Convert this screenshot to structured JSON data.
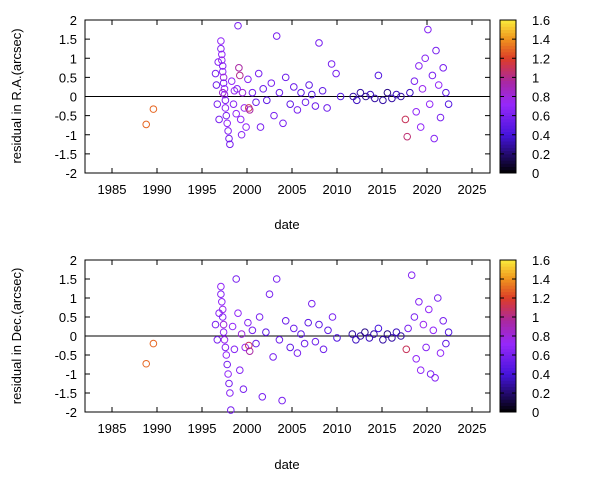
{
  "chart_data": [
    {
      "type": "scatter",
      "xlabel": "date",
      "ylabel": "residual in R.A.(arcsec)",
      "xlim": [
        1982,
        2027
      ],
      "ylim": [
        -2,
        2
      ],
      "x_ticks": [
        "1985",
        "1990",
        "1995",
        "2000",
        "2005",
        "2010",
        "2015",
        "2020",
        "2025"
      ],
      "y_ticks": [
        "-2",
        "-1.5",
        "-1",
        "-0.5",
        "0",
        "0.5",
        "1",
        "1.5",
        "2"
      ],
      "colorbar_ticks": [
        "0",
        "0.2",
        "0.4",
        "0.6",
        "0.8",
        "1",
        "1.2",
        "1.4",
        "1.6"
      ],
      "colorbar_range": [
        0,
        1.6
      ],
      "zero_line": true,
      "marker": "open-circle",
      "points": [
        {
          "x": 1988.8,
          "y": -0.73,
          "c": 1.3
        },
        {
          "x": 1989.6,
          "y": -0.33,
          "c": 1.3
        },
        {
          "x": 1996.5,
          "y": 0.6,
          "c": 0.6
        },
        {
          "x": 1996.6,
          "y": 0.3,
          "c": 0.55
        },
        {
          "x": 1996.7,
          "y": -0.2,
          "c": 0.6
        },
        {
          "x": 1996.8,
          "y": 0.9,
          "c": 0.65
        },
        {
          "x": 1996.9,
          "y": -0.6,
          "c": 0.6
        },
        {
          "x": 1997.1,
          "y": 1.45,
          "c": 0.7
        },
        {
          "x": 1997.1,
          "y": 1.25,
          "c": 0.65
        },
        {
          "x": 1997.2,
          "y": 1.1,
          "c": 0.7
        },
        {
          "x": 1997.2,
          "y": 0.95,
          "c": 0.75
        },
        {
          "x": 1997.3,
          "y": 0.8,
          "c": 0.65
        },
        {
          "x": 1997.3,
          "y": 0.65,
          "c": 0.7
        },
        {
          "x": 1997.4,
          "y": 0.5,
          "c": 0.8
        },
        {
          "x": 1997.4,
          "y": 0.35,
          "c": 0.6
        },
        {
          "x": 1997.5,
          "y": 0.2,
          "c": 0.7
        },
        {
          "x": 1997.5,
          "y": 0.05,
          "c": 0.75
        },
        {
          "x": 1997.6,
          "y": -0.1,
          "c": 0.65
        },
        {
          "x": 1997.6,
          "y": -0.3,
          "c": 0.7
        },
        {
          "x": 1997.7,
          "y": -0.5,
          "c": 0.6
        },
        {
          "x": 1997.8,
          "y": -0.7,
          "c": 0.7
        },
        {
          "x": 1997.9,
          "y": -0.9,
          "c": 0.65
        },
        {
          "x": 1998.0,
          "y": -1.1,
          "c": 0.6
        },
        {
          "x": 1998.1,
          "y": -1.25,
          "c": 0.6
        },
        {
          "x": 1997.3,
          "y": 0.1,
          "c": 0.85
        },
        {
          "x": 1998.3,
          "y": 0.4,
          "c": 0.7
        },
        {
          "x": 1998.5,
          "y": -0.2,
          "c": 0.65
        },
        {
          "x": 1998.6,
          "y": 0.15,
          "c": 0.75
        },
        {
          "x": 1998.8,
          "y": -0.45,
          "c": 0.7
        },
        {
          "x": 1998.9,
          "y": 0.2,
          "c": 0.65
        },
        {
          "x": 1999.0,
          "y": 1.85,
          "c": 0.6
        },
        {
          "x": 1999.1,
          "y": 0.75,
          "c": 0.95
        },
        {
          "x": 1999.2,
          "y": 0.55,
          "c": 1.0
        },
        {
          "x": 1999.3,
          "y": -0.6,
          "c": 0.7
        },
        {
          "x": 1999.4,
          "y": -1.0,
          "c": 0.65
        },
        {
          "x": 1999.5,
          "y": 0.1,
          "c": 0.8
        },
        {
          "x": 1999.7,
          "y": -0.3,
          "c": 0.75
        },
        {
          "x": 1999.9,
          "y": -0.8,
          "c": 0.7
        },
        {
          "x": 2000.1,
          "y": 0.45,
          "c": 0.65
        },
        {
          "x": 2000.2,
          "y": -0.3,
          "c": 1.1
        },
        {
          "x": 2000.3,
          "y": -0.35,
          "c": 0.95
        },
        {
          "x": 2000.6,
          "y": 0.1,
          "c": 0.6
        },
        {
          "x": 2001.0,
          "y": -0.15,
          "c": 0.55
        },
        {
          "x": 2001.3,
          "y": 0.6,
          "c": 0.6
        },
        {
          "x": 2001.5,
          "y": -0.8,
          "c": 0.6
        },
        {
          "x": 2001.8,
          "y": 0.2,
          "c": 0.55
        },
        {
          "x": 2002.2,
          "y": -0.1,
          "c": 0.5
        },
        {
          "x": 2002.7,
          "y": 0.35,
          "c": 0.6
        },
        {
          "x": 2003.0,
          "y": -0.5,
          "c": 0.6
        },
        {
          "x": 2003.3,
          "y": 1.58,
          "c": 0.6
        },
        {
          "x": 2003.6,
          "y": 0.1,
          "c": 0.55
        },
        {
          "x": 2004.0,
          "y": -0.7,
          "c": 0.6
        },
        {
          "x": 2004.3,
          "y": 0.5,
          "c": 0.55
        },
        {
          "x": 2004.8,
          "y": -0.2,
          "c": 0.5
        },
        {
          "x": 2005.2,
          "y": 0.25,
          "c": 0.55
        },
        {
          "x": 2005.6,
          "y": -0.35,
          "c": 0.6
        },
        {
          "x": 2006.0,
          "y": 0.1,
          "c": 0.5
        },
        {
          "x": 2006.5,
          "y": -0.15,
          "c": 0.55
        },
        {
          "x": 2006.9,
          "y": 0.3,
          "c": 0.5
        },
        {
          "x": 2007.2,
          "y": 0.05,
          "c": 0.45
        },
        {
          "x": 2007.6,
          "y": -0.25,
          "c": 0.55
        },
        {
          "x": 2008.0,
          "y": 1.4,
          "c": 0.6
        },
        {
          "x": 2008.4,
          "y": 0.15,
          "c": 0.5
        },
        {
          "x": 2008.9,
          "y": -0.3,
          "c": 0.55
        },
        {
          "x": 2009.4,
          "y": 0.85,
          "c": 0.6
        },
        {
          "x": 2009.9,
          "y": 0.6,
          "c": 0.6
        },
        {
          "x": 2010.4,
          "y": 0.0,
          "c": 0.45
        },
        {
          "x": 2011.8,
          "y": 0.0,
          "c": 0.3
        },
        {
          "x": 2012.2,
          "y": -0.1,
          "c": 0.35
        },
        {
          "x": 2012.6,
          "y": 0.1,
          "c": 0.3
        },
        {
          "x": 2013.2,
          "y": 0.0,
          "c": 0.25
        },
        {
          "x": 2013.7,
          "y": 0.05,
          "c": 0.35
        },
        {
          "x": 2014.2,
          "y": -0.05,
          "c": 0.3
        },
        {
          "x": 2014.6,
          "y": 0.55,
          "c": 0.45
        },
        {
          "x": 2015.1,
          "y": -0.1,
          "c": 0.3
        },
        {
          "x": 2015.6,
          "y": 0.1,
          "c": 0.25
        },
        {
          "x": 2016.1,
          "y": -0.05,
          "c": 0.3
        },
        {
          "x": 2016.6,
          "y": 0.05,
          "c": 0.35
        },
        {
          "x": 2017.1,
          "y": 0.0,
          "c": 0.3
        },
        {
          "x": 2017.6,
          "y": -0.6,
          "c": 1.1
        },
        {
          "x": 2017.8,
          "y": -1.05,
          "c": 1.05
        },
        {
          "x": 2018.1,
          "y": 0.1,
          "c": 0.35
        },
        {
          "x": 2018.6,
          "y": 0.4,
          "c": 0.6
        },
        {
          "x": 2018.8,
          "y": -0.4,
          "c": 0.7
        },
        {
          "x": 2019.1,
          "y": 0.8,
          "c": 0.65
        },
        {
          "x": 2019.3,
          "y": -0.8,
          "c": 0.7
        },
        {
          "x": 2019.5,
          "y": 0.2,
          "c": 0.75
        },
        {
          "x": 2019.8,
          "y": 1.0,
          "c": 0.65
        },
        {
          "x": 2020.1,
          "y": 1.75,
          "c": 0.65
        },
        {
          "x": 2020.3,
          "y": -0.2,
          "c": 0.7
        },
        {
          "x": 2020.6,
          "y": 0.55,
          "c": 0.6
        },
        {
          "x": 2020.8,
          "y": -1.1,
          "c": 0.65
        },
        {
          "x": 2021.0,
          "y": 1.2,
          "c": 0.6
        },
        {
          "x": 2021.3,
          "y": 0.3,
          "c": 0.7
        },
        {
          "x": 2021.5,
          "y": -0.55,
          "c": 0.6
        },
        {
          "x": 2021.8,
          "y": 0.75,
          "c": 0.6
        },
        {
          "x": 2022.1,
          "y": 0.1,
          "c": 0.5
        },
        {
          "x": 2022.4,
          "y": -0.2,
          "c": 0.45
        }
      ]
    },
    {
      "type": "scatter",
      "xlabel": "date",
      "ylabel": "residual in Dec.(arcsec)",
      "xlim": [
        1982,
        2027
      ],
      "ylim": [
        -2,
        2
      ],
      "x_ticks": [
        "1985",
        "1990",
        "1995",
        "2000",
        "2005",
        "2010",
        "2015",
        "2020",
        "2025"
      ],
      "y_ticks": [
        "-2",
        "-1.5",
        "-1",
        "-0.5",
        "0",
        "0.5",
        "1",
        "1.5",
        "2"
      ],
      "colorbar_ticks": [
        "0",
        "0.2",
        "0.4",
        "0.6",
        "0.8",
        "1",
        "1.2",
        "1.4",
        "1.6"
      ],
      "colorbar_range": [
        0,
        1.6
      ],
      "zero_line": true,
      "marker": "open-circle",
      "points": [
        {
          "x": 1988.8,
          "y": -0.73,
          "c": 1.3
        },
        {
          "x": 1989.6,
          "y": -0.2,
          "c": 1.3
        },
        {
          "x": 1996.5,
          "y": 0.3,
          "c": 0.6
        },
        {
          "x": 1996.7,
          "y": -0.1,
          "c": 0.6
        },
        {
          "x": 1996.9,
          "y": 0.6,
          "c": 0.65
        },
        {
          "x": 1997.1,
          "y": 1.3,
          "c": 0.7
        },
        {
          "x": 1997.1,
          "y": 1.1,
          "c": 0.65
        },
        {
          "x": 1997.2,
          "y": 0.9,
          "c": 0.7
        },
        {
          "x": 1997.3,
          "y": 0.7,
          "c": 0.75
        },
        {
          "x": 1997.3,
          "y": 0.5,
          "c": 0.65
        },
        {
          "x": 1997.4,
          "y": 0.3,
          "c": 0.8
        },
        {
          "x": 1997.4,
          "y": 0.1,
          "c": 0.7
        },
        {
          "x": 1997.5,
          "y": -0.1,
          "c": 0.75
        },
        {
          "x": 1997.6,
          "y": -0.3,
          "c": 0.65
        },
        {
          "x": 1997.7,
          "y": -0.5,
          "c": 0.7
        },
        {
          "x": 1997.8,
          "y": -0.75,
          "c": 0.6
        },
        {
          "x": 1997.9,
          "y": -1.0,
          "c": 0.7
        },
        {
          "x": 1998.0,
          "y": -1.25,
          "c": 0.6
        },
        {
          "x": 1998.1,
          "y": -1.5,
          "c": 0.65
        },
        {
          "x": 1998.2,
          "y": -1.95,
          "c": 0.6
        },
        {
          "x": 1998.4,
          "y": 0.25,
          "c": 0.7
        },
        {
          "x": 1998.6,
          "y": -0.35,
          "c": 0.65
        },
        {
          "x": 1998.8,
          "y": 1.5,
          "c": 0.6
        },
        {
          "x": 1999.0,
          "y": 0.6,
          "c": 0.7
        },
        {
          "x": 1999.2,
          "y": -0.9,
          "c": 0.65
        },
        {
          "x": 1999.4,
          "y": 0.05,
          "c": 0.8
        },
        {
          "x": 1999.6,
          "y": -1.4,
          "c": 0.6
        },
        {
          "x": 1999.8,
          "y": -0.3,
          "c": 0.75
        },
        {
          "x": 2000.1,
          "y": 0.35,
          "c": 0.65
        },
        {
          "x": 2000.2,
          "y": -0.25,
          "c": 1.1
        },
        {
          "x": 2000.3,
          "y": -0.4,
          "c": 0.95
        },
        {
          "x": 2000.6,
          "y": 0.15,
          "c": 0.6
        },
        {
          "x": 2001.0,
          "y": -0.2,
          "c": 0.55
        },
        {
          "x": 2001.4,
          "y": 0.5,
          "c": 0.6
        },
        {
          "x": 2001.7,
          "y": -1.6,
          "c": 0.6
        },
        {
          "x": 2002.1,
          "y": 0.1,
          "c": 0.5
        },
        {
          "x": 2002.5,
          "y": 1.1,
          "c": 0.6
        },
        {
          "x": 2002.9,
          "y": -0.55,
          "c": 0.6
        },
        {
          "x": 2003.3,
          "y": 1.5,
          "c": 0.6
        },
        {
          "x": 2003.6,
          "y": -0.1,
          "c": 0.55
        },
        {
          "x": 2003.9,
          "y": -1.7,
          "c": 0.6
        },
        {
          "x": 2004.3,
          "y": 0.4,
          "c": 0.55
        },
        {
          "x": 2004.8,
          "y": -0.3,
          "c": 0.5
        },
        {
          "x": 2005.2,
          "y": 0.2,
          "c": 0.55
        },
        {
          "x": 2005.6,
          "y": -0.45,
          "c": 0.6
        },
        {
          "x": 2006.0,
          "y": 0.05,
          "c": 0.5
        },
        {
          "x": 2006.4,
          "y": -0.2,
          "c": 0.55
        },
        {
          "x": 2006.8,
          "y": 0.35,
          "c": 0.5
        },
        {
          "x": 2007.2,
          "y": 0.85,
          "c": 0.6
        },
        {
          "x": 2007.6,
          "y": -0.15,
          "c": 0.55
        },
        {
          "x": 2008.0,
          "y": 0.3,
          "c": 0.5
        },
        {
          "x": 2008.5,
          "y": -0.35,
          "c": 0.55
        },
        {
          "x": 2009.0,
          "y": 0.15,
          "c": 0.5
        },
        {
          "x": 2009.5,
          "y": 0.5,
          "c": 0.6
        },
        {
          "x": 2010.0,
          "y": -0.05,
          "c": 0.45
        },
        {
          "x": 2011.7,
          "y": 0.05,
          "c": 0.3
        },
        {
          "x": 2012.1,
          "y": -0.1,
          "c": 0.35
        },
        {
          "x": 2012.6,
          "y": 0.0,
          "c": 0.3
        },
        {
          "x": 2013.1,
          "y": 0.1,
          "c": 0.25
        },
        {
          "x": 2013.6,
          "y": -0.05,
          "c": 0.35
        },
        {
          "x": 2014.1,
          "y": 0.05,
          "c": 0.3
        },
        {
          "x": 2014.6,
          "y": 0.2,
          "c": 0.4
        },
        {
          "x": 2015.1,
          "y": -0.1,
          "c": 0.3
        },
        {
          "x": 2015.6,
          "y": 0.05,
          "c": 0.25
        },
        {
          "x": 2016.1,
          "y": -0.05,
          "c": 0.3
        },
        {
          "x": 2016.6,
          "y": 0.1,
          "c": 0.35
        },
        {
          "x": 2017.1,
          "y": 0.0,
          "c": 0.3
        },
        {
          "x": 2017.7,
          "y": -0.35,
          "c": 1.1
        },
        {
          "x": 2017.9,
          "y": 0.2,
          "c": 0.6
        },
        {
          "x": 2018.3,
          "y": 1.6,
          "c": 0.65
        },
        {
          "x": 2018.6,
          "y": 0.5,
          "c": 0.6
        },
        {
          "x": 2018.8,
          "y": -0.6,
          "c": 0.7
        },
        {
          "x": 2019.1,
          "y": 0.9,
          "c": 0.65
        },
        {
          "x": 2019.3,
          "y": -0.9,
          "c": 0.7
        },
        {
          "x": 2019.6,
          "y": 0.3,
          "c": 0.75
        },
        {
          "x": 2019.9,
          "y": -0.3,
          "c": 0.65
        },
        {
          "x": 2020.2,
          "y": 0.7,
          "c": 0.7
        },
        {
          "x": 2020.4,
          "y": -1.0,
          "c": 0.6
        },
        {
          "x": 2020.7,
          "y": 0.15,
          "c": 0.7
        },
        {
          "x": 2020.9,
          "y": -1.1,
          "c": 0.65
        },
        {
          "x": 2021.2,
          "y": 1.0,
          "c": 0.6
        },
        {
          "x": 2021.5,
          "y": -0.45,
          "c": 0.7
        },
        {
          "x": 2021.8,
          "y": 0.4,
          "c": 0.6
        },
        {
          "x": 2022.1,
          "y": -0.2,
          "c": 0.5
        },
        {
          "x": 2022.4,
          "y": 0.1,
          "c": 0.45
        }
      ]
    }
  ]
}
